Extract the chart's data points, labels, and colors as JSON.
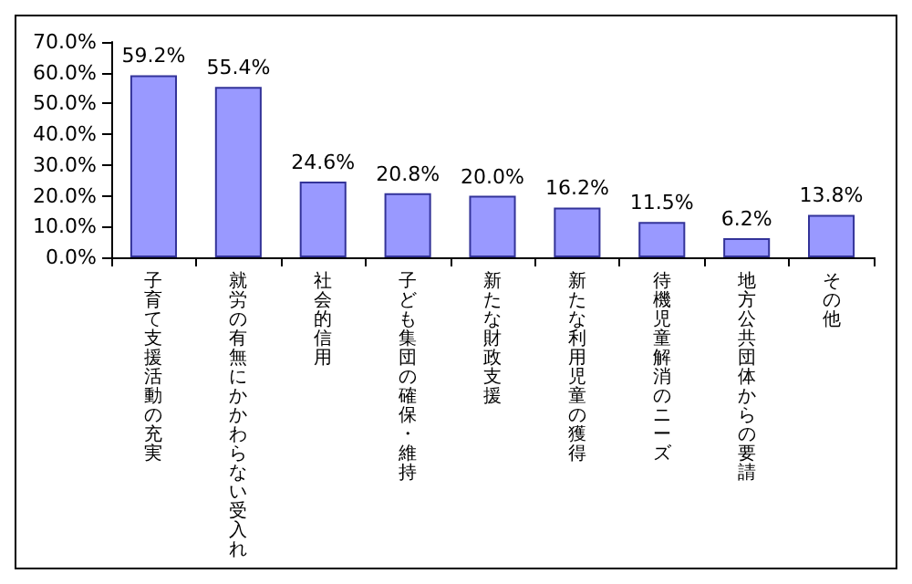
{
  "chart_data": {
    "type": "bar",
    "categories": [
      "子育て支援活動の充実",
      "就労の有無にかかわらない受入れ",
      "社会的信用",
      "子ども集団の確保・維持",
      "新たな財政支援",
      "新たな利用児童の獲得",
      "待機児童解消のニーズ",
      "地方公共団体からの要請",
      "その他"
    ],
    "values": [
      59.2,
      55.4,
      24.6,
      20.8,
      20.0,
      16.2,
      11.5,
      6.2,
      13.8
    ],
    "value_labels": [
      "59.2%",
      "55.4%",
      "24.6%",
      "20.8%",
      "20.0%",
      "16.2%",
      "11.5%",
      "6.2%",
      "13.8%"
    ],
    "color": "#9999ff",
    "ylim": [
      0,
      70
    ],
    "yticks": [
      {
        "value": 0,
        "label": "0.0%"
      },
      {
        "value": 10,
        "label": "10.0%"
      },
      {
        "value": 20,
        "label": "20.0%"
      },
      {
        "value": 30,
        "label": "30.0%"
      },
      {
        "value": 40,
        "label": "40.0%"
      },
      {
        "value": 50,
        "label": "50.0%"
      },
      {
        "value": 60,
        "label": "60.0%"
      },
      {
        "value": 70,
        "label": "70.0%"
      }
    ],
    "grid": false
  }
}
